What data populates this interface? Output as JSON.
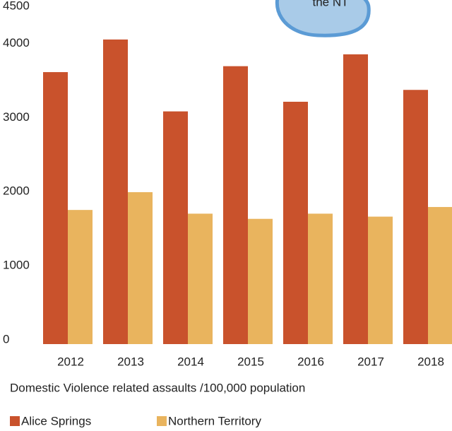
{
  "chart_data": {
    "type": "bar",
    "title": "Domestic Violence related assaults /100,000 population",
    "annotation": "the NT",
    "categories": [
      "2012",
      "2013",
      "2014",
      "2015",
      "2016",
      "2017",
      "2018"
    ],
    "series": [
      {
        "name": "Alice Springs",
        "color": "#c9522c",
        "values": [
          3670,
          4110,
          3140,
          3750,
          3270,
          3910,
          3430
        ]
      },
      {
        "name": "Northern Territory",
        "color": "#e9b45e",
        "values": [
          1810,
          2050,
          1760,
          1690,
          1760,
          1720,
          1850
        ]
      }
    ],
    "ylim": [
      0,
      4500
    ],
    "yticks": [
      0,
      1000,
      2000,
      3000,
      4000,
      4500
    ],
    "grid": false
  }
}
